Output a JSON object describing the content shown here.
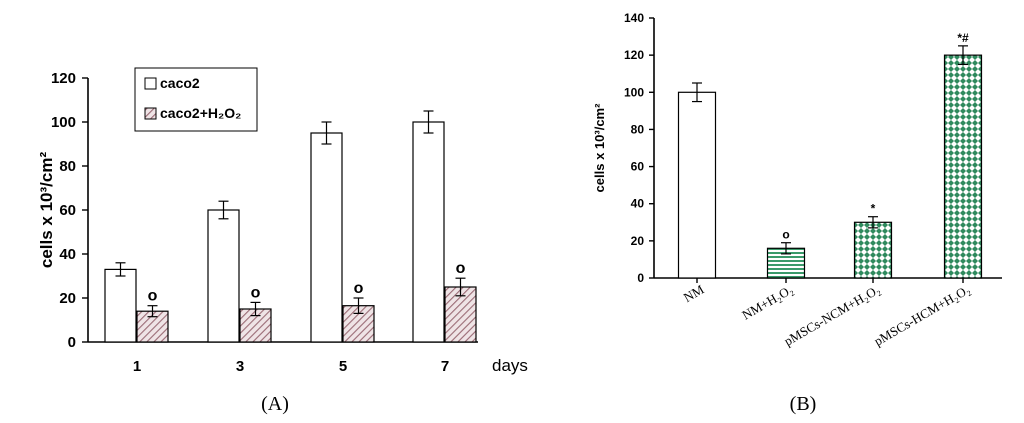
{
  "chart_data": [
    {
      "type": "bar",
      "panel_label": "(A)",
      "ylabel": "cells x 10³/cm²",
      "xlabel": "days",
      "ylim": [
        0,
        120
      ],
      "yticks": [
        0,
        20,
        40,
        60,
        80,
        100,
        120
      ],
      "categories": [
        "1",
        "3",
        "5",
        "7"
      ],
      "legend_placement": "top-center",
      "series": [
        {
          "name": "caco2",
          "values": [
            33,
            60,
            95,
            100
          ],
          "errors": [
            3,
            4,
            5,
            5
          ],
          "color": "#ffffff",
          "marker": [
            "",
            "",
            "",
            ""
          ]
        },
        {
          "name": "caco2+H₂O₂",
          "values": [
            14,
            15,
            16.5,
            25
          ],
          "errors": [
            2.5,
            3,
            3.5,
            4
          ],
          "color": "#c9a0a8",
          "marker": [
            "o",
            "o",
            "o",
            "o"
          ]
        }
      ]
    },
    {
      "type": "bar",
      "panel_label": "(B)",
      "ylabel": "cells x 10³/cm²",
      "ylim": [
        0,
        140
      ],
      "yticks": [
        0,
        20,
        40,
        60,
        80,
        100,
        120,
        140
      ],
      "categories": [
        "NM",
        "NM+H₂O₂",
        "pMSCs-NCM+H₂O₂",
        "pMSCs-HCM+H₂O₂"
      ],
      "series": [
        {
          "values": [
            100,
            16,
            30,
            120
          ],
          "errors": [
            5,
            3,
            3,
            5
          ],
          "markers": [
            "",
            "o",
            "*",
            "*#"
          ],
          "colors": [
            "#ffffff",
            "#3a9a6a",
            "#3a9a6a",
            "#2f8a5e"
          ]
        }
      ]
    }
  ]
}
